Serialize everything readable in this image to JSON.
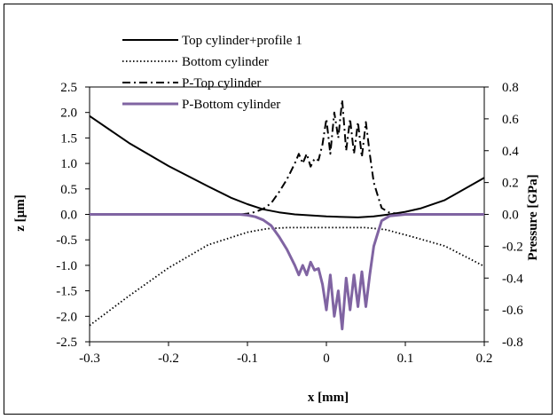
{
  "colors": {
    "top_cylinder": "#000000",
    "bottom_cylinder": "#000000",
    "p_top": "#000000",
    "p_bottom": "#8064A2",
    "frame": "#000000",
    "background": "#ffffff"
  },
  "chart_data": {
    "type": "line",
    "title": "",
    "xlabel": "x [mm]",
    "ylabel": "z [µm]",
    "y2label": "Pressure [GPa]",
    "xlim": [
      -0.3,
      0.2
    ],
    "ylim": [
      -2.5,
      2.5
    ],
    "y2lim": [
      -0.8,
      0.8
    ],
    "grid": false,
    "legend_placement": "top-left",
    "x_ticks": [
      -0.3,
      -0.2,
      -0.1,
      0,
      0.1,
      0.2
    ],
    "x_tick_labels": [
      "-0.3",
      "-0.2",
      "-0.1",
      "0",
      "0.1",
      "0.2"
    ],
    "y_ticks": [
      2.5,
      2.0,
      1.5,
      1.0,
      0.5,
      0.0,
      -0.5,
      -1.0,
      -1.5,
      -2.0,
      -2.5
    ],
    "y_tick_labels": [
      "2.5",
      "2.0",
      "1.5",
      "1.0",
      "0.5",
      "0.0",
      "-0.5",
      "-1.0",
      "-1.5",
      "-2.0",
      "-2.5"
    ],
    "y2_ticks": [
      0.8,
      0.6,
      0.4,
      0.2,
      0.0,
      -0.2,
      -0.4,
      -0.6,
      -0.8
    ],
    "y2_tick_labels": [
      "0.8",
      "0.6",
      "0.4",
      "0.2",
      "0.0",
      "-0.2",
      "-0.4",
      "-0.6",
      "-0.8"
    ],
    "series": [
      {
        "name": "Top cylinder+profile 1",
        "axis": "left",
        "style": "solid",
        "color": "#000000",
        "x": [
          -0.3,
          -0.25,
          -0.2,
          -0.15,
          -0.12,
          -0.1,
          -0.08,
          -0.06,
          -0.04,
          -0.02,
          0.0,
          0.02,
          0.04,
          0.06,
          0.08,
          0.1,
          0.12,
          0.15,
          0.2
        ],
        "y": [
          1.93,
          1.4,
          0.95,
          0.55,
          0.32,
          0.2,
          0.1,
          0.04,
          0.0,
          -0.02,
          -0.04,
          -0.05,
          -0.06,
          -0.04,
          0.0,
          0.05,
          0.12,
          0.28,
          0.72
        ]
      },
      {
        "name": "Bottom cylinder",
        "axis": "left",
        "style": "dotted",
        "color": "#000000",
        "x": [
          -0.3,
          -0.25,
          -0.2,
          -0.15,
          -0.1,
          -0.075,
          -0.05,
          0.0,
          0.05,
          0.075,
          0.1,
          0.15,
          0.2
        ],
        "y": [
          -2.18,
          -1.6,
          -1.05,
          -0.6,
          -0.35,
          -0.28,
          -0.26,
          -0.26,
          -0.26,
          -0.3,
          -0.4,
          -0.62,
          -1.02
        ]
      },
      {
        "name": "P-Top cylinder",
        "axis": "right",
        "style": "dash-dot",
        "color": "#000000",
        "x": [
          -0.3,
          -0.15,
          -0.11,
          -0.1,
          -0.09,
          -0.08,
          -0.07,
          -0.06,
          -0.05,
          -0.04,
          -0.035,
          -0.03,
          -0.025,
          -0.02,
          -0.015,
          -0.01,
          -0.005,
          0.0,
          0.005,
          0.01,
          0.015,
          0.02,
          0.025,
          0.03,
          0.035,
          0.04,
          0.045,
          0.05,
          0.055,
          0.06,
          0.065,
          0.07,
          0.08,
          0.1,
          0.2
        ],
        "y": [
          0.0,
          0.0,
          0.0,
          0.005,
          0.015,
          0.035,
          0.07,
          0.14,
          0.22,
          0.32,
          0.38,
          0.32,
          0.38,
          0.3,
          0.35,
          0.34,
          0.44,
          0.6,
          0.38,
          0.64,
          0.48,
          0.72,
          0.4,
          0.6,
          0.38,
          0.58,
          0.36,
          0.58,
          0.38,
          0.2,
          0.12,
          0.04,
          0.01,
          0.0,
          0.0
        ]
      },
      {
        "name": "P-Bottom cylinder",
        "axis": "right",
        "style": "solid",
        "color": "#8064A2",
        "x": [
          -0.3,
          -0.15,
          -0.11,
          -0.1,
          -0.09,
          -0.08,
          -0.07,
          -0.06,
          -0.05,
          -0.04,
          -0.035,
          -0.03,
          -0.025,
          -0.02,
          -0.015,
          -0.01,
          -0.005,
          0.0,
          0.005,
          0.01,
          0.015,
          0.02,
          0.025,
          0.03,
          0.035,
          0.04,
          0.045,
          0.05,
          0.055,
          0.06,
          0.065,
          0.07,
          0.08,
          0.1,
          0.2
        ],
        "y": [
          0.0,
          0.0,
          0.0,
          -0.005,
          -0.015,
          -0.035,
          -0.07,
          -0.14,
          -0.22,
          -0.32,
          -0.38,
          -0.32,
          -0.38,
          -0.3,
          -0.35,
          -0.34,
          -0.44,
          -0.6,
          -0.38,
          -0.64,
          -0.48,
          -0.72,
          -0.4,
          -0.6,
          -0.38,
          -0.58,
          -0.36,
          -0.58,
          -0.38,
          -0.2,
          -0.12,
          -0.04,
          -0.01,
          0.0,
          0.0
        ]
      }
    ]
  }
}
